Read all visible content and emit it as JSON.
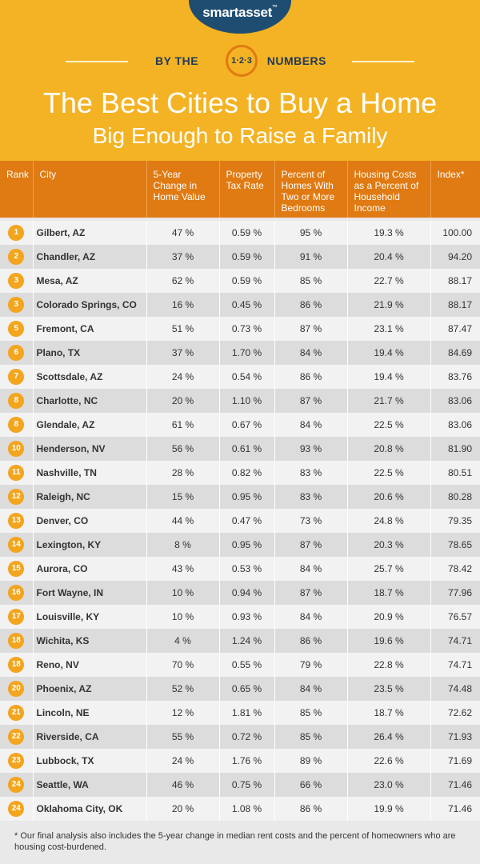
{
  "brand": {
    "logo": "smartasset",
    "tm": "™"
  },
  "banner": {
    "left": "BY THE",
    "badge": "1·2·3",
    "right": "NUMBERS"
  },
  "title": {
    "line1": "The Best Cities to Buy a Home",
    "line2": "Big Enough to Raise a Family"
  },
  "colors": {
    "header": "#f4b324",
    "table_header": "#e07a12",
    "rank_circle": "#f2a51d",
    "logo": "#1f4d72"
  },
  "chart_data": {
    "type": "table",
    "title": "The Best Cities to Buy a Home Big Enough to Raise a Family",
    "columns": [
      "Rank",
      "City",
      "5-Year Change in Home Value",
      "Property Tax Rate",
      "Percent of Homes With Two or More Bedrooms",
      "Housing Costs as a Percent of Household Income",
      "Index*"
    ],
    "rows": [
      [
        "1",
        "Gilbert, AZ",
        "47 %",
        "0.59 %",
        "95 %",
        "19.3 %",
        "100.00"
      ],
      [
        "2",
        "Chandler, AZ",
        "37 %",
        "0.59 %",
        "91 %",
        "20.4 %",
        "94.20"
      ],
      [
        "3",
        "Mesa, AZ",
        "62 %",
        "0.59 %",
        "85 %",
        "22.7 %",
        "88.17"
      ],
      [
        "3",
        "Colorado Springs, CO",
        "16 %",
        "0.45 %",
        "86 %",
        "21.9 %",
        "88.17"
      ],
      [
        "5",
        "Fremont, CA",
        "51 %",
        "0.73 %",
        "87 %",
        "23.1 %",
        "87.47"
      ],
      [
        "6",
        "Plano, TX",
        "37 %",
        "1.70 %",
        "84 %",
        "19.4 %",
        "84.69"
      ],
      [
        "7",
        "Scottsdale, AZ",
        "24 %",
        "0.54 %",
        "86 %",
        "19.4 %",
        "83.76"
      ],
      [
        "8",
        "Charlotte, NC",
        "20 %",
        "1.10 %",
        "87 %",
        "21.7 %",
        "83.06"
      ],
      [
        "8",
        "Glendale, AZ",
        "61 %",
        "0.67 %",
        "84 %",
        "22.5 %",
        "83.06"
      ],
      [
        "10",
        "Henderson, NV",
        "56 %",
        "0.61 %",
        "93 %",
        "20.8 %",
        "81.90"
      ],
      [
        "11",
        "Nashville, TN",
        "28 %",
        "0.82 %",
        "83 %",
        "22.5 %",
        "80.51"
      ],
      [
        "12",
        "Raleigh, NC",
        "15 %",
        "0.95 %",
        "83 %",
        "20.6 %",
        "80.28"
      ],
      [
        "13",
        "Denver, CO",
        "44 %",
        "0.47 %",
        "73 %",
        "24.8 %",
        "79.35"
      ],
      [
        "14",
        "Lexington, KY",
        "8 %",
        "0.95 %",
        "87 %",
        "20.3 %",
        "78.65"
      ],
      [
        "15",
        "Aurora, CO",
        "43 %",
        "0.53 %",
        "84 %",
        "25.7 %",
        "78.42"
      ],
      [
        "16",
        "Fort Wayne, IN",
        "10 %",
        "0.94 %",
        "87 %",
        "18.7 %",
        "77.96"
      ],
      [
        "17",
        "Louisville, KY",
        "10 %",
        "0.93 %",
        "84 %",
        "20.9 %",
        "76.57"
      ],
      [
        "18",
        "Wichita, KS",
        "4 %",
        "1.24 %",
        "86 %",
        "19.6 %",
        "74.71"
      ],
      [
        "18",
        "Reno, NV",
        "70 %",
        "0.55 %",
        "79 %",
        "22.8 %",
        "74.71"
      ],
      [
        "20",
        "Phoenix, AZ",
        "52 %",
        "0.65 %",
        "84 %",
        "23.5 %",
        "74.48"
      ],
      [
        "21",
        "Lincoln, NE",
        "12 %",
        "1.81 %",
        "85 %",
        "18.7 %",
        "72.62"
      ],
      [
        "22",
        "Riverside, CA",
        "55 %",
        "0.72 %",
        "85 %",
        "26.4 %",
        "71.93"
      ],
      [
        "23",
        "Lubbock, TX",
        "24 %",
        "1.76 %",
        "89 %",
        "22.6 %",
        "71.69"
      ],
      [
        "24",
        "Seattle, WA",
        "46 %",
        "0.75 %",
        "66 %",
        "23.0 %",
        "71.46"
      ],
      [
        "24",
        "Oklahoma City, OK",
        "20 %",
        "1.08 %",
        "86 %",
        "19.9 %",
        "71.46"
      ]
    ]
  },
  "footnote": "* Our final analysis also includes the 5-year change in median rent costs and the percent of homeowners who are housing cost-burdened."
}
